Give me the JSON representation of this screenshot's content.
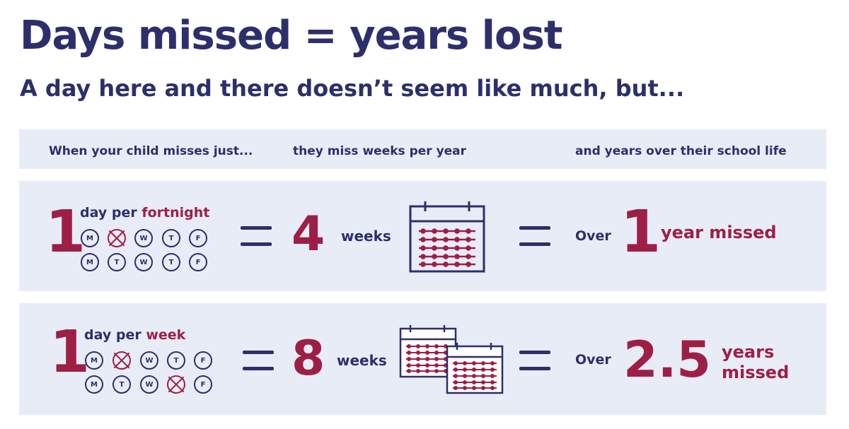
{
  "title": "Days missed = years lost",
  "subtitle": "A day here and there doesn’t seem like much, but...",
  "header": {
    "col1": "When your child misses just...",
    "col2": "they miss weeks per year",
    "col3": "and years over their school life"
  },
  "rows": [
    {
      "count": "1",
      "freq_prefix": "day per ",
      "freq_period": "fortnight",
      "days_row1": [
        "M",
        "T",
        "W",
        "T",
        "F"
      ],
      "days_row2": [
        "M",
        "T",
        "W",
        "T",
        "F"
      ],
      "missed_days": [
        "week1-tuesday"
      ],
      "weeks_value": "4",
      "weeks_label": "weeks",
      "over_label": "Over",
      "years_value": "1",
      "years_label": "year missed"
    },
    {
      "count": "1",
      "freq_prefix": "day per ",
      "freq_period": "week",
      "days_row1": [
        "M",
        "T",
        "W",
        "T",
        "F"
      ],
      "days_row2": [
        "M",
        "T",
        "W",
        "T",
        "F"
      ],
      "missed_days": [
        "week1-tuesday",
        "week2-thursday"
      ],
      "weeks_value": "8",
      "weeks_label": "weeks",
      "over_label": "Over",
      "years_value": "2.5",
      "years_label_line1": "years",
      "years_label_line2": "missed"
    }
  ],
  "colors": {
    "navy": "#2d2f6b",
    "crimson": "#9e1f45",
    "band": "#e8ecf6"
  },
  "icons": [
    "calendar-icon",
    "cross-mark-icon",
    "equals-sign-icon"
  ]
}
